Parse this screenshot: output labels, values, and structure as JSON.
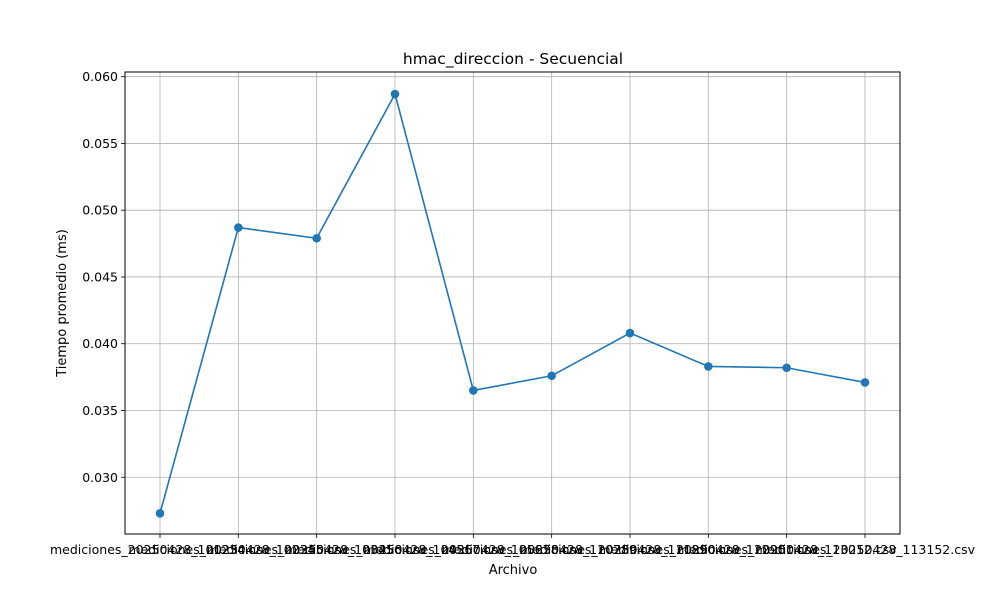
{
  "chart_data": {
    "type": "line",
    "title": "hmac_direccion - Secuencial",
    "xlabel": "Archivo",
    "ylabel": "Tiempo promedio (ms)",
    "categories": [
      "mediciones_20250428_101234.csv",
      "mediciones_20250428_102345.csv",
      "mediciones_20250428_103456.csv",
      "mediciones_20250428_104567.csv",
      "mediciones_20250428_105678.csv",
      "mediciones_20250428_110789.csv",
      "mediciones_20250428_111890.csv",
      "mediciones_20250428_112901.csv",
      "mediciones_20250428_113012.csv",
      "mediciones_20250428_113152.csv"
    ],
    "series": [
      {
        "values": [
          0.0273,
          0.0487,
          0.0479,
          0.0587,
          0.0365,
          0.0376,
          0.0408,
          0.0383,
          0.0382,
          0.0371
        ],
        "color": "#1f77b4",
        "marker": "circle"
      }
    ],
    "yticks": [
      0.03,
      0.035,
      0.04,
      0.045,
      0.05,
      0.055,
      0.06
    ],
    "ytick_labels": [
      "0.030",
      "0.035",
      "0.040",
      "0.045",
      "0.050",
      "0.055",
      "0.060"
    ],
    "ylim": [
      0.02575,
      0.06035
    ],
    "grid": true,
    "legend": "none"
  }
}
